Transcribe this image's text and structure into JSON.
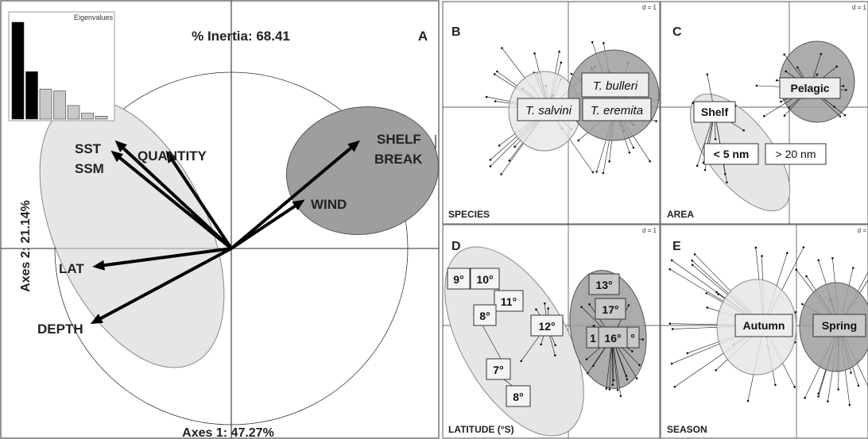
{
  "panel_a": {
    "letter": "A",
    "inertia_label": "% Inertia: 68.41",
    "x_axis_label": "Axes 1: 47.27%",
    "y_axis_label": "Axes 2: 21.14%",
    "eigen_title": "Eigenvalues",
    "eigenvalues": [
      1.0,
      0.49,
      0.31,
      0.29,
      0.14,
      0.06,
      0.03
    ],
    "variables": [
      "SST",
      "SSM",
      "QUANTITY",
      "LAT",
      "DEPTH",
      "WIND",
      "SHELF",
      "BREAK"
    ]
  },
  "panel_b": {
    "letter": "B",
    "corner_label": "SPECIES",
    "scale": "d = 1",
    "groups": [
      "T. bulleri",
      "T. salvini",
      "T. eremita"
    ]
  },
  "panel_c": {
    "letter": "C",
    "corner_label": "AREA",
    "scale": "d = 1",
    "groups": [
      "Pelagic",
      "Shelf",
      "< 5 nm",
      "> 20 nm"
    ]
  },
  "panel_d": {
    "letter": "D",
    "corner_label": "LATITUDE (°S)",
    "scale": "d = 1",
    "groups": [
      "9°",
      "10°",
      "11°",
      "8°",
      "12°",
      "7°",
      "8°",
      "13°",
      "17°",
      "1",
      "16°",
      "°"
    ]
  },
  "panel_e": {
    "letter": "E",
    "corner_label": "SEASON",
    "scale": "d =",
    "groups": [
      "Autumn",
      "Spring"
    ]
  },
  "colors": {
    "light_ellipse": "#e6e6e6",
    "dark_ellipse": "#9e9e9e",
    "arrow": "#000000"
  },
  "chart_data": [
    {
      "type": "scatter",
      "title": "% Inertia: 68.41",
      "xlabel": "Axes 1: 47.27%",
      "ylabel": "Axes 2: 21.14%",
      "series": [
        {
          "name": "SST",
          "x": -0.57,
          "y": 0.53
        },
        {
          "name": "SSM",
          "x": -0.59,
          "y": 0.48
        },
        {
          "name": "QUANTITY",
          "x": -0.32,
          "y": 0.48
        },
        {
          "name": "LAT",
          "x": -0.68,
          "y": -0.09
        },
        {
          "name": "DEPTH",
          "x": -0.69,
          "y": -0.37
        },
        {
          "name": "WIND",
          "x": 0.36,
          "y": 0.24
        },
        {
          "name": "SHELF BREAK",
          "x": 0.63,
          "y": 0.53
        }
      ],
      "grid": false
    },
    {
      "type": "bar",
      "title": "Eigenvalues",
      "categories": [
        "1",
        "2",
        "3",
        "4",
        "5",
        "6",
        "7"
      ],
      "values": [
        1.0,
        0.49,
        0.31,
        0.29,
        0.14,
        0.06,
        0.03
      ]
    }
  ]
}
